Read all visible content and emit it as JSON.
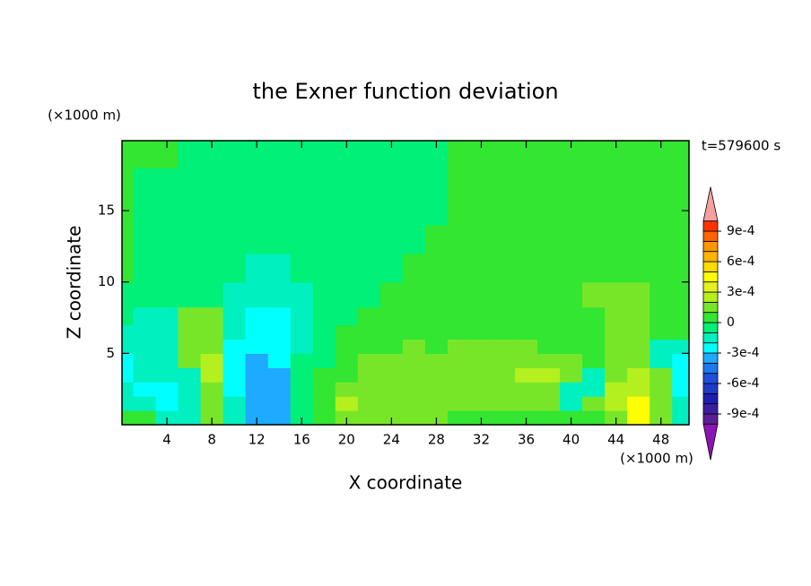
{
  "chart_data": {
    "type": "contour",
    "title": "the Exner function deviation",
    "x_label": "X coordinate",
    "y_label": "Z coordinate",
    "x_unit": "(×1000 m)",
    "y_unit": "(×1000 m)",
    "time_label": "t=579600 s",
    "xlim": [
      0,
      50.5
    ],
    "ylim": [
      0,
      19.9
    ],
    "xticks": [
      4,
      8,
      12,
      16,
      20,
      24,
      28,
      32,
      36,
      40,
      44,
      48
    ],
    "yticks": [
      5,
      10,
      15
    ],
    "x": [
      0,
      2,
      4,
      6,
      8,
      10,
      12,
      14,
      16,
      18,
      20,
      22,
      24,
      26,
      28,
      30,
      32,
      34,
      36,
      38,
      40,
      42,
      44,
      46,
      48,
      50
    ],
    "y": [
      0.5,
      1.5,
      2.5,
      3.5,
      4.5,
      5.5,
      6.5,
      7.5,
      9,
      11,
      13,
      15,
      17,
      19
    ],
    "z": [
      [
        5e-05,
        5e-05,
        -0.00015,
        -0.00015,
        0.00015,
        -0.00015,
        -0.00035,
        -0.00035,
        -5e-05,
        5e-05,
        0.00015,
        0.00015,
        0.00015,
        0.00015,
        0.00015,
        5e-05,
        5e-05,
        5e-05,
        5e-05,
        5e-05,
        5e-05,
        5e-05,
        0.00015,
        0.00045,
        0.00015,
        -0.00015
      ],
      [
        -0.00015,
        -0.00015,
        -0.00025,
        -0.00015,
        0.00015,
        -0.00015,
        -0.00035,
        -0.00035,
        -5e-05,
        5e-05,
        0.00025,
        0.00015,
        0.00015,
        0.00015,
        0.00015,
        0.00015,
        0.00015,
        0.00015,
        0.00015,
        0.00015,
        -0.00015,
        0.00015,
        0.00025,
        0.00045,
        0.00015,
        -0.00015
      ],
      [
        -0.00015,
        -0.00025,
        -0.00025,
        -0.00015,
        0.00015,
        -0.00025,
        -0.00035,
        -0.00035,
        -5e-05,
        5e-05,
        0.00015,
        0.00015,
        0.00015,
        0.00015,
        0.00015,
        0.00015,
        0.00015,
        0.00015,
        0.00015,
        0.00015,
        -0.00015,
        -0.00015,
        0.00025,
        0.00025,
        0.00015,
        -0.00025
      ],
      [
        -0.00025,
        -0.00015,
        -0.00015,
        -0.00015,
        0.00025,
        -0.00025,
        -0.00035,
        -0.00035,
        -5e-05,
        5e-05,
        5e-05,
        0.00015,
        0.00015,
        0.00015,
        0.00015,
        0.00015,
        0.00015,
        0.00015,
        0.00025,
        0.00025,
        0.00015,
        -0.00015,
        0.00015,
        0.00025,
        0.00015,
        -0.00025
      ],
      [
        -0.00025,
        -0.00015,
        -0.00015,
        0.00015,
        0.00025,
        -0.00025,
        -0.00035,
        -0.00025,
        -5e-05,
        -5e-05,
        5e-05,
        0.00015,
        0.00015,
        0.00015,
        0.00015,
        0.00015,
        0.00015,
        0.00015,
        0.00015,
        0.00015,
        0.00015,
        5e-05,
        0.00015,
        0.00015,
        -0.00015,
        -0.00025
      ],
      [
        -0.00015,
        -0.00015,
        -0.00015,
        0.00015,
        0.00015,
        -0.00025,
        -0.00025,
        -0.00025,
        -0.00015,
        -5e-05,
        5e-05,
        5e-05,
        5e-05,
        0.00015,
        5e-05,
        0.00015,
        0.00015,
        0.00015,
        0.00015,
        5e-05,
        5e-05,
        5e-05,
        0.00015,
        0.00015,
        -0.00015,
        -0.00015
      ],
      [
        -0.00015,
        -0.00015,
        -0.00015,
        0.00015,
        0.00015,
        -0.00015,
        -0.00025,
        -0.00025,
        -0.00015,
        -5e-05,
        5e-05,
        5e-05,
        5e-05,
        5e-05,
        5e-05,
        5e-05,
        5e-05,
        5e-05,
        5e-05,
        5e-05,
        5e-05,
        5e-05,
        0.00015,
        0.00015,
        5e-05,
        5e-05
      ],
      [
        -5e-05,
        -0.00015,
        -0.00015,
        0.00015,
        0.00015,
        -0.00015,
        -0.00025,
        -0.00025,
        -0.00015,
        -5e-05,
        -5e-05,
        5e-05,
        5e-05,
        5e-05,
        5e-05,
        5e-05,
        5e-05,
        5e-05,
        5e-05,
        5e-05,
        5e-05,
        5e-05,
        0.00015,
        0.00015,
        5e-05,
        5e-05
      ],
      [
        -5e-05,
        -5e-05,
        -5e-05,
        -5e-05,
        -5e-05,
        -0.00015,
        -0.00015,
        -0.00015,
        -0.00015,
        -5e-05,
        -5e-05,
        -5e-05,
        5e-05,
        5e-05,
        5e-05,
        5e-05,
        5e-05,
        5e-05,
        5e-05,
        5e-05,
        5e-05,
        0.00015,
        0.00015,
        0.00015,
        5e-05,
        5e-05
      ],
      [
        5e-05,
        -5e-05,
        -5e-05,
        -5e-05,
        -5e-05,
        -5e-05,
        -0.00015,
        -0.00015,
        -5e-05,
        -5e-05,
        -5e-05,
        -5e-05,
        -5e-05,
        5e-05,
        5e-05,
        5e-05,
        5e-05,
        5e-05,
        5e-05,
        5e-05,
        5e-05,
        5e-05,
        5e-05,
        5e-05,
        5e-05,
        5e-05
      ],
      [
        5e-05,
        -5e-05,
        -5e-05,
        -5e-05,
        -5e-05,
        -5e-05,
        -5e-05,
        -5e-05,
        -5e-05,
        -5e-05,
        -5e-05,
        -5e-05,
        -5e-05,
        -5e-05,
        5e-05,
        5e-05,
        5e-05,
        5e-05,
        5e-05,
        5e-05,
        5e-05,
        5e-05,
        5e-05,
        5e-05,
        5e-05,
        5e-05
      ],
      [
        5e-05,
        -5e-05,
        -5e-05,
        -5e-05,
        -5e-05,
        -5e-05,
        -5e-05,
        -5e-05,
        -5e-05,
        -5e-05,
        -5e-05,
        -5e-05,
        -5e-05,
        -5e-05,
        -5e-05,
        5e-05,
        5e-05,
        5e-05,
        5e-05,
        5e-05,
        5e-05,
        5e-05,
        5e-05,
        5e-05,
        5e-05,
        5e-05
      ],
      [
        5e-05,
        -5e-05,
        -5e-05,
        -5e-05,
        -5e-05,
        -5e-05,
        -5e-05,
        -5e-05,
        -5e-05,
        -5e-05,
        -5e-05,
        -5e-05,
        -5e-05,
        -5e-05,
        -5e-05,
        5e-05,
        5e-05,
        5e-05,
        5e-05,
        5e-05,
        5e-05,
        5e-05,
        5e-05,
        5e-05,
        5e-05,
        5e-05
      ],
      [
        5e-05,
        5e-05,
        5e-05,
        -5e-05,
        -5e-05,
        -5e-05,
        -5e-05,
        -5e-05,
        -5e-05,
        -5e-05,
        -5e-05,
        -5e-05,
        -5e-05,
        -5e-05,
        -5e-05,
        5e-05,
        5e-05,
        5e-05,
        5e-05,
        5e-05,
        5e-05,
        5e-05,
        5e-05,
        5e-05,
        5e-05,
        5e-05
      ]
    ],
    "levels": [
      -0.001,
      -0.0009,
      -0.0008,
      -0.0007,
      -0.0006,
      -0.0005,
      -0.0004,
      -0.0003,
      -0.0002,
      -0.0001,
      0,
      0.0001,
      0.0002,
      0.0003,
      0.0004,
      0.0005,
      0.0006,
      0.0007,
      0.0008,
      0.0009,
      0.001
    ],
    "colors": [
      "#5a1e96",
      "#3c1ea0",
      "#1e1eb4",
      "#1e3cc8",
      "#1e50dc",
      "#1e78f0",
      "#1eaaff",
      "#00ffff",
      "#00f0c0",
      "#00f078",
      "#32e632",
      "#78e628",
      "#b4f01e",
      "#e6f01e",
      "#ffff00",
      "#ffdc00",
      "#ffb400",
      "#ff9600",
      "#ff6400",
      "#ff3200"
    ],
    "under_color": "#8c14b4",
    "over_color": "#f4a0a0",
    "colorbar_ticks": [
      {
        "value": -0.0009,
        "label": "-9e-4"
      },
      {
        "value": -0.0006,
        "label": "-6e-4"
      },
      {
        "value": -0.0003,
        "label": "-3e-4"
      },
      0,
      {
        "value": 0.0003,
        "label": "3e-4"
      },
      {
        "value": 0.0006,
        "label": "6e-4"
      },
      {
        "value": 0.0009,
        "label": "9e-4"
      }
    ]
  }
}
